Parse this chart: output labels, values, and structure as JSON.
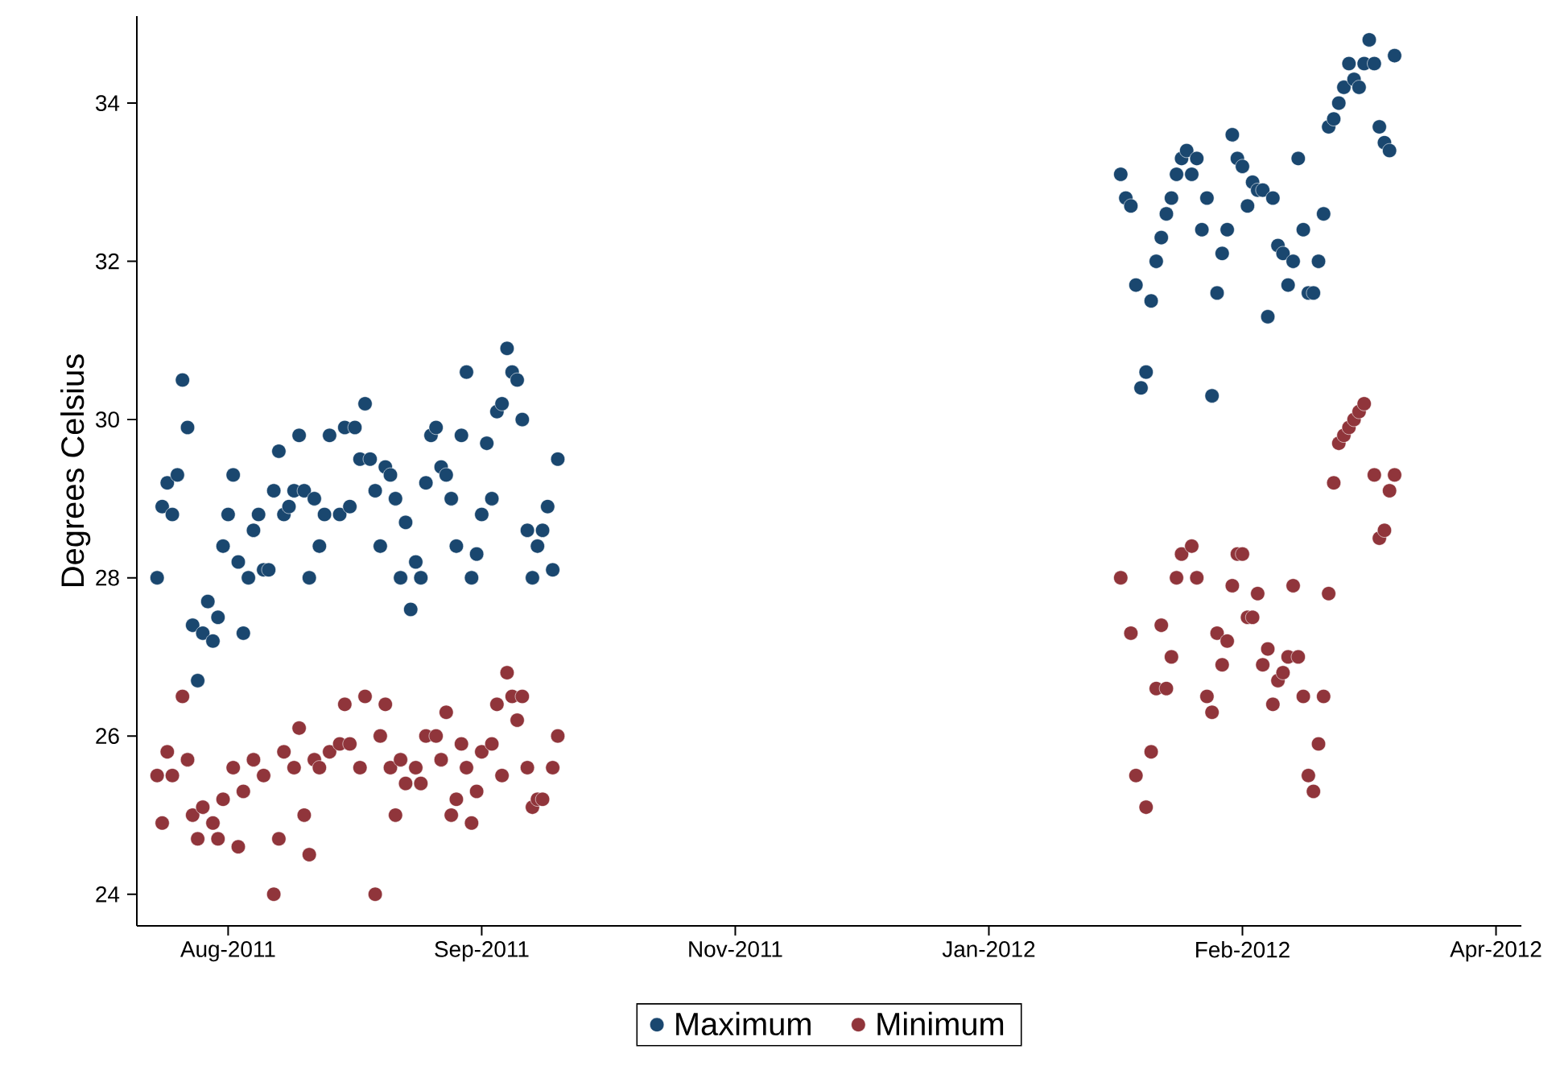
{
  "chart_data": {
    "type": "scatter",
    "ylabel": "Degrees Celsius",
    "marker": "circle",
    "legend": "bottom",
    "grid": false,
    "xlim": [
      "2011-07-24",
      "2012-04-22"
    ],
    "ylim": [
      23.6,
      35.1
    ],
    "xticks": [
      {
        "value": "2011-08-11",
        "label": "Aug-2011"
      },
      {
        "value": "2011-09-30",
        "label": "Sep-2011"
      },
      {
        "value": "2011-11-19",
        "label": "Nov-2011"
      },
      {
        "value": "2012-01-08",
        "label": "Jan-2012"
      },
      {
        "value": "2012-02-27",
        "label": "Feb-2012"
      },
      {
        "value": "2012-04-17",
        "label": "Apr-2012"
      }
    ],
    "yticks": [
      24,
      26,
      28,
      30,
      32,
      34
    ],
    "series": [
      {
        "name": "Maximum",
        "color": "#1a476f",
        "x": [
          "2011-07-28",
          "2011-07-29",
          "2011-07-30",
          "2011-07-31",
          "2011-08-01",
          "2011-08-02",
          "2011-08-03",
          "2011-08-04",
          "2011-08-05",
          "2011-08-06",
          "2011-08-07",
          "2011-08-08",
          "2011-08-09",
          "2011-08-10",
          "2011-08-11",
          "2011-08-12",
          "2011-08-13",
          "2011-08-14",
          "2011-08-15",
          "2011-08-16",
          "2011-08-17",
          "2011-08-18",
          "2011-08-19",
          "2011-08-20",
          "2011-08-21",
          "2011-08-22",
          "2011-08-23",
          "2011-08-24",
          "2011-08-25",
          "2011-08-26",
          "2011-08-27",
          "2011-08-28",
          "2011-08-29",
          "2011-08-30",
          "2011-08-31",
          "2011-09-02",
          "2011-09-03",
          "2011-09-04",
          "2011-09-05",
          "2011-09-06",
          "2011-09-07",
          "2011-09-08",
          "2011-09-09",
          "2011-09-10",
          "2011-09-11",
          "2011-09-12",
          "2011-09-13",
          "2011-09-14",
          "2011-09-15",
          "2011-09-16",
          "2011-09-17",
          "2011-09-18",
          "2011-09-19",
          "2011-09-20",
          "2011-09-21",
          "2011-09-22",
          "2011-09-23",
          "2011-09-24",
          "2011-09-25",
          "2011-09-26",
          "2011-09-27",
          "2011-09-28",
          "2011-09-29",
          "2011-09-30",
          "2011-10-01",
          "2011-10-02",
          "2011-10-03",
          "2011-10-04",
          "2011-10-05",
          "2011-10-06",
          "2011-10-07",
          "2011-10-08",
          "2011-10-09",
          "2011-10-10",
          "2011-10-11",
          "2011-10-12",
          "2011-10-13",
          "2011-10-14",
          "2011-10-15",
          "2012-02-03",
          "2012-02-04",
          "2012-02-05",
          "2012-02-06",
          "2012-02-07",
          "2012-02-08",
          "2012-02-09",
          "2012-02-10",
          "2012-02-11",
          "2012-02-12",
          "2012-02-13",
          "2012-02-14",
          "2012-02-15",
          "2012-02-16",
          "2012-02-17",
          "2012-02-18",
          "2012-02-19",
          "2012-02-20",
          "2012-02-21",
          "2012-02-22",
          "2012-02-23",
          "2012-02-24",
          "2012-02-25",
          "2012-02-26",
          "2012-02-27",
          "2012-02-28",
          "2012-02-29",
          "2012-03-01",
          "2012-03-02",
          "2012-03-03",
          "2012-03-04",
          "2012-03-05",
          "2012-03-06",
          "2012-03-07",
          "2012-03-08",
          "2012-03-09",
          "2012-03-10",
          "2012-03-11",
          "2012-03-12",
          "2012-03-13",
          "2012-03-14",
          "2012-03-15",
          "2012-03-16",
          "2012-03-17",
          "2012-03-18",
          "2012-03-19",
          "2012-03-20",
          "2012-03-21",
          "2012-03-22",
          "2012-03-23",
          "2012-03-24",
          "2012-03-25",
          "2012-03-26",
          "2012-03-27",
          "2012-03-28"
        ],
        "values": [
          28.0,
          28.9,
          29.2,
          28.8,
          29.3,
          30.5,
          29.9,
          27.4,
          26.7,
          27.3,
          27.7,
          27.2,
          27.5,
          28.4,
          28.8,
          29.3,
          28.2,
          27.3,
          28.0,
          28.6,
          28.8,
          28.1,
          28.1,
          29.1,
          29.6,
          28.8,
          28.9,
          29.1,
          29.8,
          29.1,
          28.0,
          29.0,
          28.4,
          28.8,
          29.8,
          28.8,
          29.9,
          28.9,
          29.9,
          29.5,
          30.2,
          29.5,
          29.1,
          28.4,
          29.4,
          29.3,
          29.0,
          28.0,
          28.7,
          27.6,
          28.2,
          28.0,
          29.2,
          29.8,
          29.9,
          29.4,
          29.3,
          29.0,
          28.4,
          29.8,
          30.6,
          28.0,
          28.3,
          28.8,
          29.7,
          29.0,
          30.1,
          30.2,
          30.9,
          30.6,
          30.5,
          30.0,
          28.6,
          28.0,
          28.4,
          28.6,
          28.9,
          28.1,
          29.5,
          33.1,
          32.8,
          32.7,
          31.7,
          30.4,
          30.6,
          31.5,
          32.0,
          32.3,
          32.6,
          32.8,
          33.1,
          33.3,
          33.4,
          33.1,
          33.3,
          32.4,
          32.8,
          30.3,
          31.6,
          32.1,
          32.4,
          33.6,
          33.3,
          33.2,
          32.7,
          33.0,
          32.9,
          32.9,
          31.3,
          32.8,
          32.2,
          32.1,
          31.7,
          32.0,
          33.3,
          32.4,
          31.6,
          31.6,
          32.0,
          32.6,
          33.7,
          33.8,
          34.0,
          34.2,
          34.5,
          34.3,
          34.2,
          34.5,
          34.8,
          34.5,
          33.7,
          33.5,
          33.4,
          34.6
        ]
      },
      {
        "name": "Minimum",
        "color": "#90353b",
        "x": [
          "2011-07-28",
          "2011-07-29",
          "2011-07-30",
          "2011-07-31",
          "2011-08-02",
          "2011-08-03",
          "2011-08-04",
          "2011-08-05",
          "2011-08-06",
          "2011-08-08",
          "2011-08-09",
          "2011-08-10",
          "2011-08-12",
          "2011-08-13",
          "2011-08-14",
          "2011-08-16",
          "2011-08-18",
          "2011-08-20",
          "2011-08-21",
          "2011-08-22",
          "2011-08-24",
          "2011-08-25",
          "2011-08-26",
          "2011-08-27",
          "2011-08-28",
          "2011-08-29",
          "2011-08-31",
          "2011-09-02",
          "2011-09-03",
          "2011-09-04",
          "2011-09-06",
          "2011-09-07",
          "2011-09-09",
          "2011-09-10",
          "2011-09-11",
          "2011-09-12",
          "2011-09-13",
          "2011-09-14",
          "2011-09-15",
          "2011-09-17",
          "2011-09-18",
          "2011-09-19",
          "2011-09-21",
          "2011-09-22",
          "2011-09-23",
          "2011-09-24",
          "2011-09-25",
          "2011-09-26",
          "2011-09-27",
          "2011-09-28",
          "2011-09-29",
          "2011-09-30",
          "2011-10-02",
          "2011-10-03",
          "2011-10-04",
          "2011-10-05",
          "2011-10-06",
          "2011-10-07",
          "2011-10-08",
          "2011-10-09",
          "2011-10-10",
          "2011-10-11",
          "2011-10-12",
          "2011-10-14",
          "2011-10-15",
          "2012-02-03",
          "2012-02-05",
          "2012-02-06",
          "2012-02-08",
          "2012-02-09",
          "2012-02-10",
          "2012-02-11",
          "2012-02-12",
          "2012-02-13",
          "2012-02-14",
          "2012-02-15",
          "2012-02-17",
          "2012-02-18",
          "2012-02-20",
          "2012-02-21",
          "2012-02-22",
          "2012-02-23",
          "2012-02-24",
          "2012-02-25",
          "2012-02-26",
          "2012-02-27",
          "2012-02-28",
          "2012-02-29",
          "2012-03-01",
          "2012-03-02",
          "2012-03-03",
          "2012-03-04",
          "2012-03-05",
          "2012-03-06",
          "2012-03-07",
          "2012-03-08",
          "2012-03-09",
          "2012-03-10",
          "2012-03-11",
          "2012-03-12",
          "2012-03-13",
          "2012-03-14",
          "2012-03-15",
          "2012-03-16",
          "2012-03-17",
          "2012-03-18",
          "2012-03-19",
          "2012-03-20",
          "2012-03-21",
          "2012-03-22",
          "2012-03-24",
          "2012-03-25",
          "2012-03-26",
          "2012-03-27",
          "2012-03-28"
        ],
        "values": [
          25.5,
          24.9,
          25.8,
          25.5,
          26.5,
          25.7,
          25.0,
          24.7,
          25.1,
          24.9,
          24.7,
          25.2,
          25.6,
          24.6,
          25.3,
          25.7,
          25.5,
          24.0,
          24.7,
          25.8,
          25.6,
          26.1,
          25.0,
          24.5,
          25.7,
          25.6,
          25.8,
          25.9,
          26.4,
          25.9,
          25.6,
          26.5,
          24.0,
          26.0,
          26.4,
          25.6,
          25.0,
          25.7,
          25.4,
          25.6,
          25.4,
          26.0,
          26.0,
          25.7,
          26.3,
          25.0,
          25.2,
          25.9,
          25.6,
          24.9,
          25.3,
          25.8,
          25.9,
          26.4,
          25.5,
          26.8,
          26.5,
          26.2,
          26.5,
          25.6,
          25.1,
          25.2,
          25.2,
          25.6,
          26.0,
          28.0,
          27.3,
          25.5,
          25.1,
          25.8,
          26.6,
          27.4,
          26.6,
          27.0,
          28.0,
          28.3,
          28.4,
          28.0,
          26.5,
          26.3,
          27.3,
          26.9,
          27.2,
          27.9,
          28.3,
          28.3,
          27.5,
          27.5,
          27.8,
          26.9,
          27.1,
          26.4,
          26.7,
          26.8,
          27.0,
          27.9,
          27.0,
          26.5,
          25.5,
          25.3,
          25.9,
          26.5,
          27.8,
          29.2,
          29.7,
          29.8,
          29.9,
          30.0,
          30.1,
          30.2,
          29.3,
          28.5,
          28.6,
          29.1,
          29.3
        ]
      }
    ]
  }
}
